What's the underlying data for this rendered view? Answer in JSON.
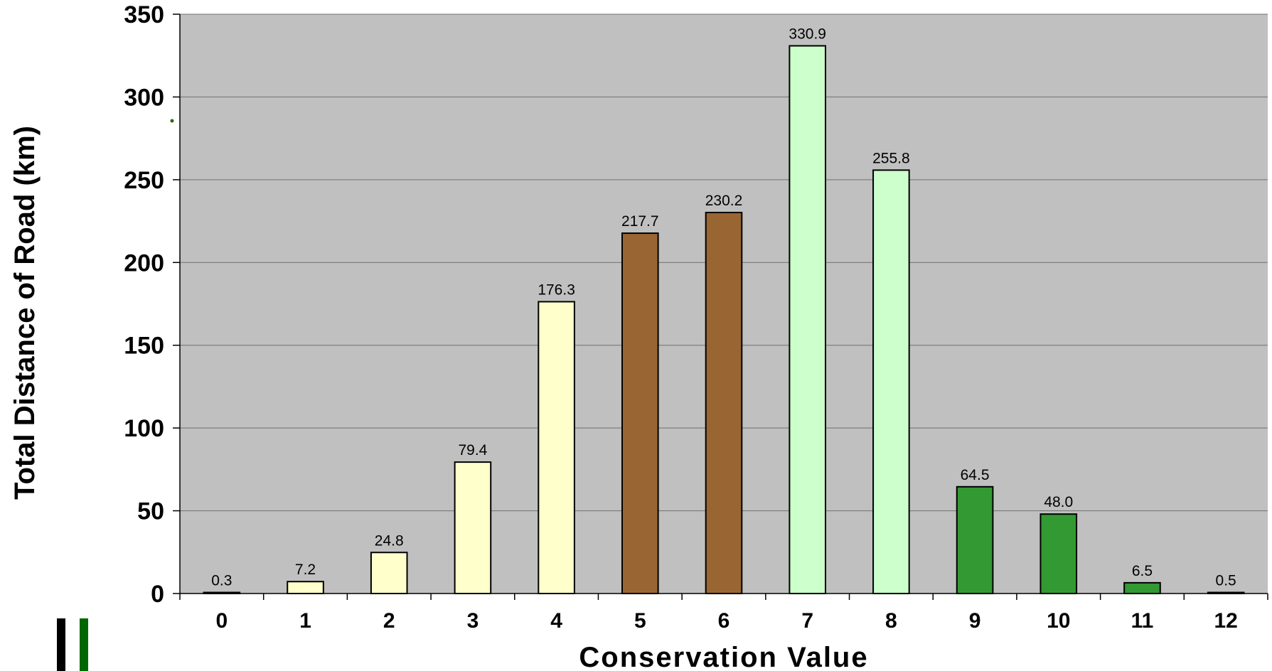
{
  "chart_data": {
    "type": "bar",
    "xlabel": "Conservation Value",
    "ylabel": "Total Distance of Road (km)",
    "categories": [
      "0",
      "1",
      "2",
      "3",
      "4",
      "5",
      "6",
      "7",
      "8",
      "9",
      "10",
      "11",
      "12"
    ],
    "values": [
      0.3,
      7.2,
      24.8,
      79.4,
      176.3,
      217.7,
      230.2,
      330.9,
      255.8,
      64.5,
      48.0,
      6.5,
      0.5
    ],
    "value_labels": [
      "0.3",
      "7.2",
      "24.8",
      "79.4",
      "176.3",
      "217.7",
      "230.2",
      "330.9",
      "255.8",
      "64.5",
      "48.0",
      "6.5",
      "0.5"
    ],
    "bar_colors": [
      "#ffffcc",
      "#ffffcc",
      "#ffffcc",
      "#ffffcc",
      "#ffffcc",
      "#996633",
      "#996633",
      "#ccffcc",
      "#ccffcc",
      "#339933",
      "#339933",
      "#339933",
      "#339933"
    ],
    "ylim": [
      0,
      350
    ],
    "yticks": [
      0,
      50,
      100,
      150,
      200,
      250,
      300,
      350
    ],
    "grid": true,
    "legend": "none",
    "plot_background": "#c0c0c0"
  }
}
